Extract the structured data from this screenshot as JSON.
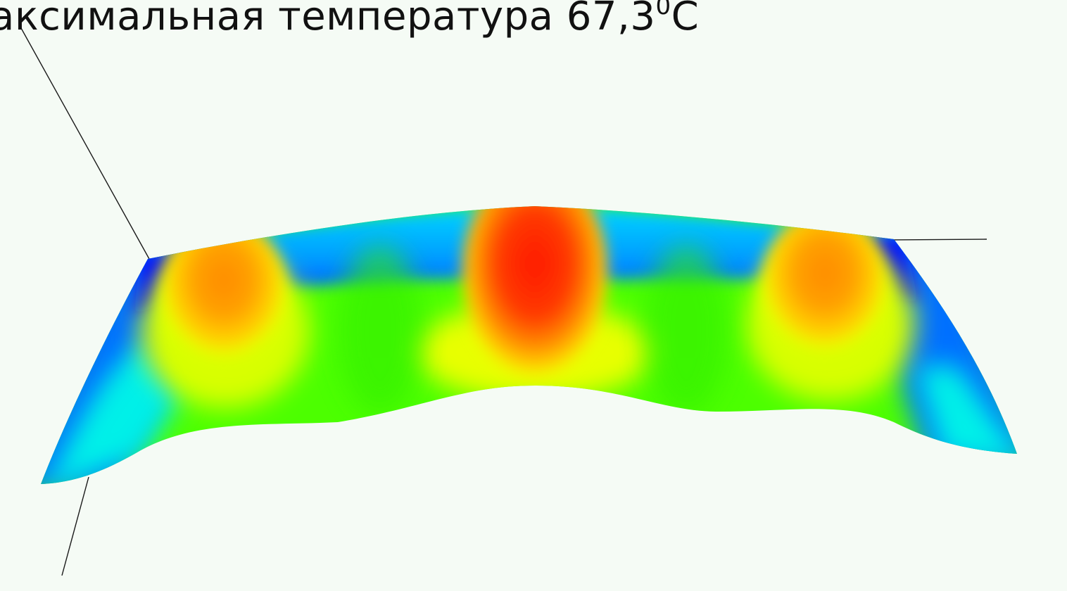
{
  "title": {
    "text": "аксимальная температура 67,3",
    "superscript": "0",
    "unit": "C"
  },
  "chart_data": {
    "type": "surface",
    "max_temperature_c": 67.3,
    "peaks": [
      {
        "position": "left",
        "level": 0.78
      },
      {
        "position": "center",
        "level": 1.0
      },
      {
        "position": "right",
        "level": 0.78
      }
    ],
    "colormap": [
      "#0000ff",
      "#00ffff",
      "#00ff00",
      "#ffff00",
      "#ff0000"
    ],
    "axes_visible": true,
    "grid": false,
    "legend": "none"
  }
}
